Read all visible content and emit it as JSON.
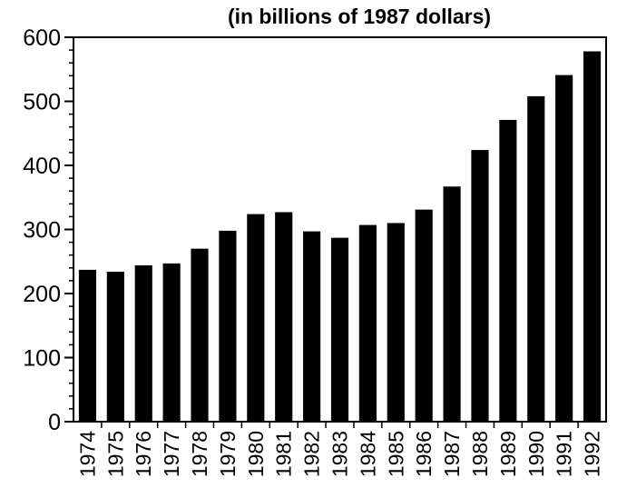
{
  "chart_data": {
    "type": "bar",
    "subtitle": "(in billions of 1987 dollars)",
    "categories": [
      "1974",
      "1975",
      "1976",
      "1977",
      "1978",
      "1979",
      "1980",
      "1981",
      "1982",
      "1983",
      "1984",
      "1985",
      "1986",
      "1987",
      "1988",
      "1989",
      "1990",
      "1991",
      "1992"
    ],
    "values": [
      237,
      234,
      244,
      247,
      270,
      298,
      324,
      327,
      297,
      287,
      307,
      310,
      331,
      367,
      424,
      471,
      508,
      541,
      578
    ],
    "ylim": [
      0,
      600
    ],
    "yticks": [
      "0",
      "100",
      "200",
      "300",
      "400",
      "500",
      "600"
    ],
    "grid": false,
    "bar_color": "#000000"
  }
}
